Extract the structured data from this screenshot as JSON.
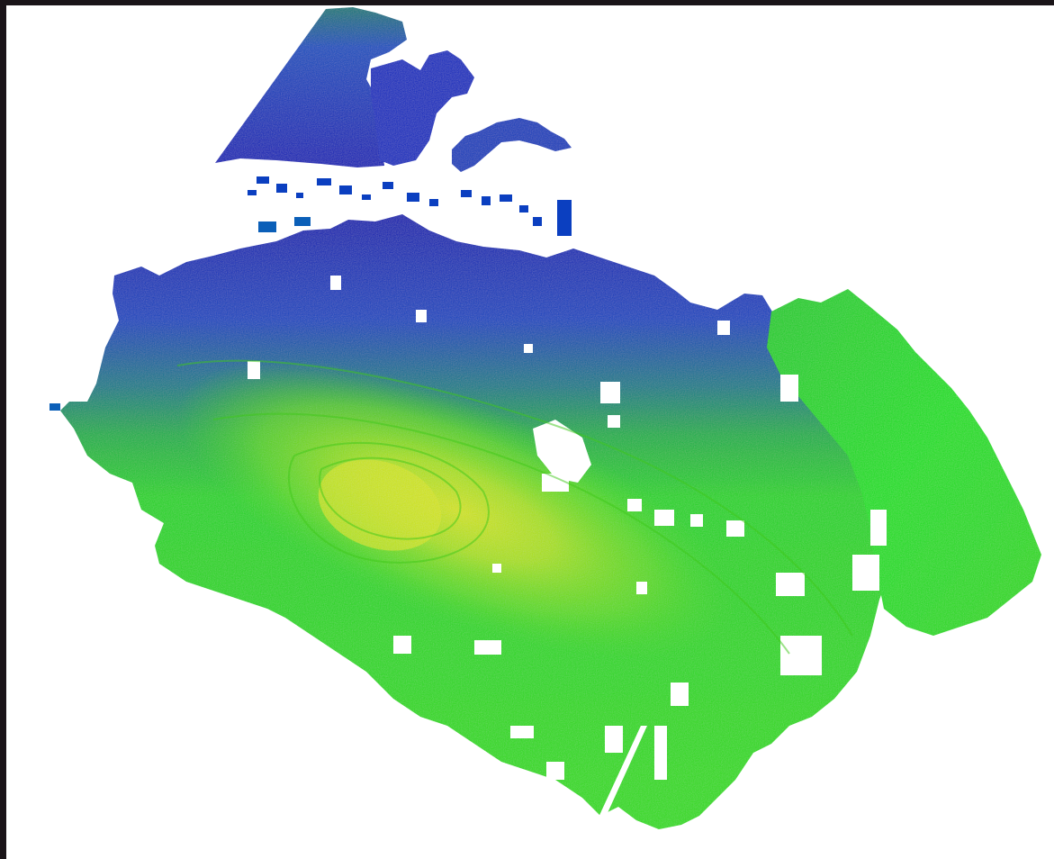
{
  "scene": {
    "kind": "point-cloud-elevation-render",
    "colormap": [
      "#1414b4",
      "#0b4fc0",
      "#0a8c70",
      "#22d21e",
      "#7ee012",
      "#d4ea00"
    ],
    "background": "#ffffff",
    "frame_color": "#1a1418"
  }
}
